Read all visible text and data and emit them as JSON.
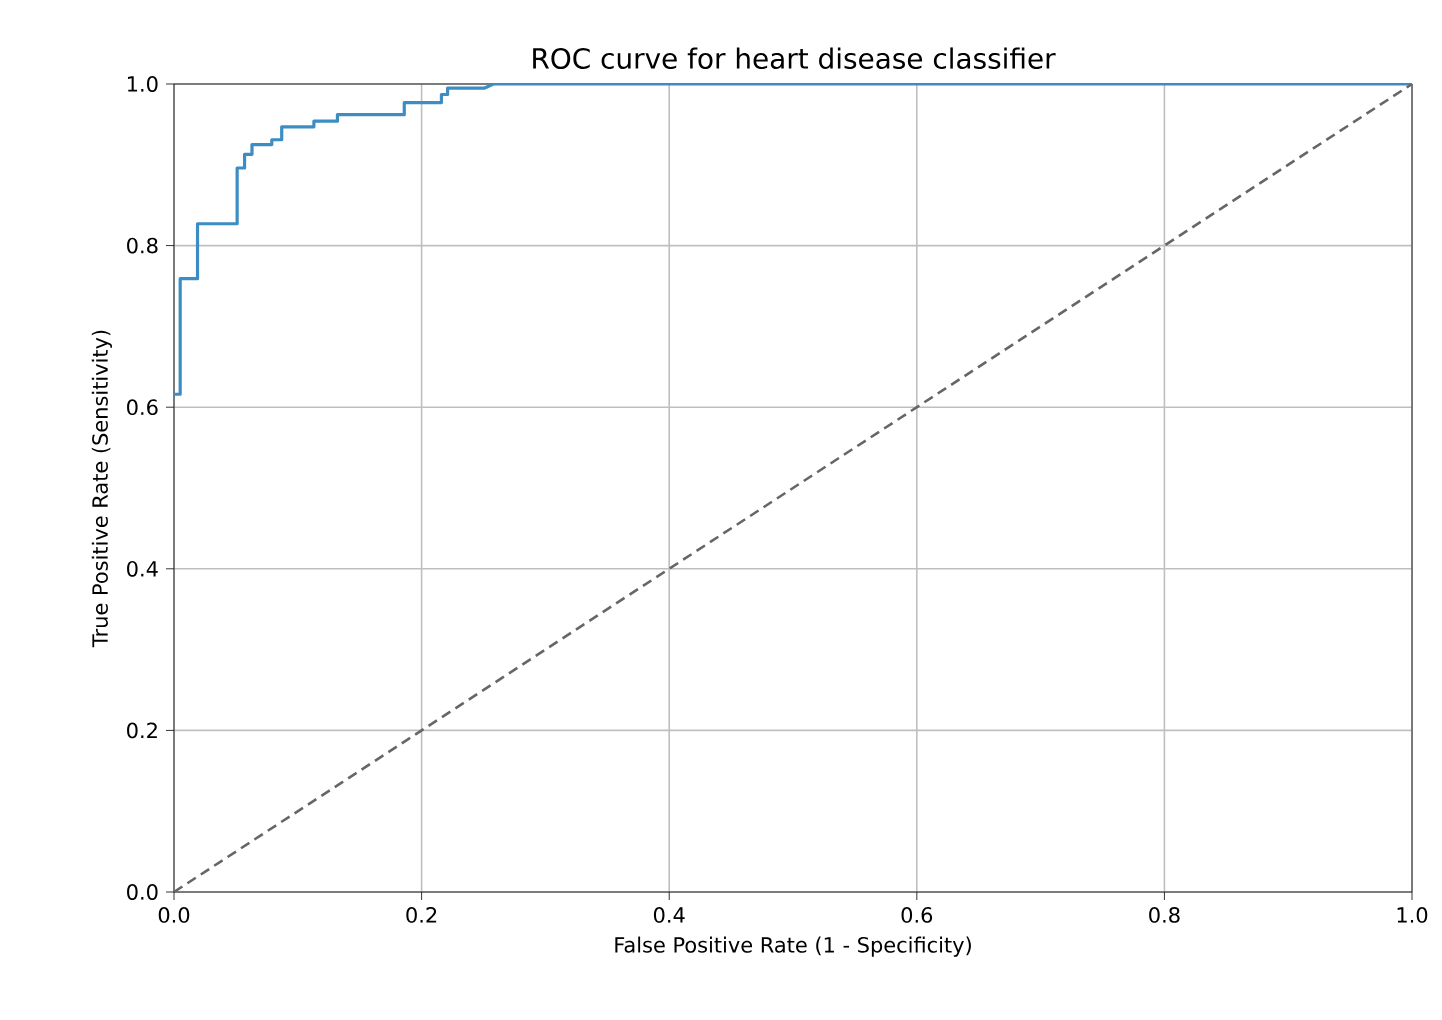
{
  "chart_data": {
    "type": "line",
    "title": "ROC curve for heart disease classifier",
    "xlabel": "False Positive Rate (1 - Specificity)",
    "ylabel": "True Positive Rate (Sensitivity)",
    "xlim": [
      0,
      1
    ],
    "ylim": [
      0,
      1
    ],
    "xticks": [
      {
        "value": 0,
        "label": "0.0"
      },
      {
        "value": 0.2,
        "label": "0.2"
      },
      {
        "value": 0.4,
        "label": "0.4"
      },
      {
        "value": 0.6,
        "label": "0.6"
      },
      {
        "value": 0.8,
        "label": "0.8"
      },
      {
        "value": 1,
        "label": "1.0"
      }
    ],
    "yticks": [
      {
        "value": 0,
        "label": "0.0"
      },
      {
        "value": 0.2,
        "label": "0.2"
      },
      {
        "value": 0.4,
        "label": "0.4"
      },
      {
        "value": 0.6,
        "label": "0.6"
      },
      {
        "value": 0.8,
        "label": "0.8"
      },
      {
        "value": 1,
        "label": "1.0"
      }
    ],
    "grid": true,
    "series": [
      {
        "color": "#3c8dc4",
        "line_style": "solid",
        "x": [
          0,
          0.005,
          0.005,
          0.019,
          0.019,
          0.051,
          0.051,
          0.057,
          0.057,
          0.063,
          0.063,
          0.079,
          0.079,
          0.087,
          0.087,
          0.113,
          0.113,
          0.132,
          0.132,
          0.186,
          0.186,
          0.216,
          0.216,
          0.221,
          0.221,
          0.251,
          0.258,
          1
        ],
        "values": [
          0.616,
          0.616,
          0.759,
          0.759,
          0.827,
          0.827,
          0.896,
          0.896,
          0.913,
          0.913,
          0.925,
          0.925,
          0.931,
          0.931,
          0.947,
          0.947,
          0.954,
          0.954,
          0.962,
          0.962,
          0.977,
          0.977,
          0.987,
          0.987,
          0.995,
          0.995,
          1,
          1
        ]
      },
      {
        "color": "#666666",
        "line_style": "dashed",
        "x": [
          0,
          1
        ],
        "values": [
          0,
          1
        ]
      }
    ]
  }
}
